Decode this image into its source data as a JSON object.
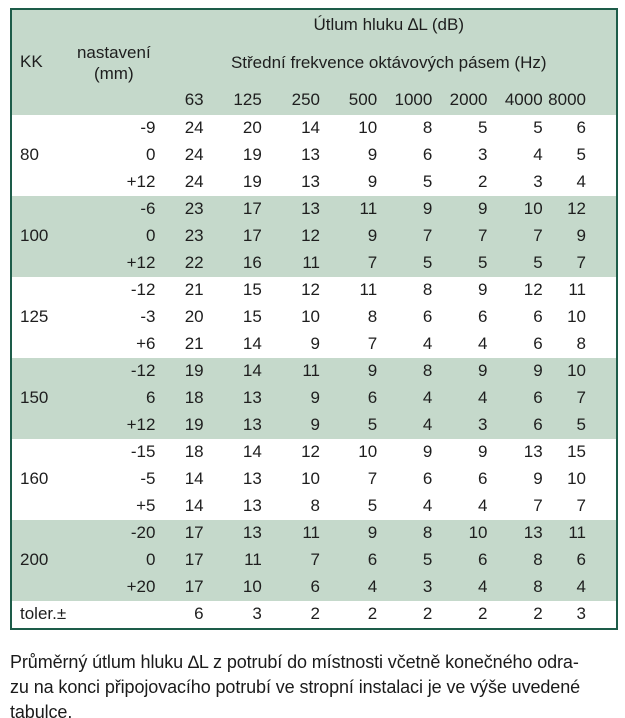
{
  "table": {
    "title": "Útlum hluku ∆L (dB)",
    "col1_header": "KK",
    "col2_header_line1": "nastavení",
    "col2_header_line2": "(mm)",
    "subtitle": "Střední frekvence oktávových pásem (Hz)",
    "frequencies": [
      "63",
      "125",
      "250",
      "500",
      "1000",
      "2000",
      "4000",
      "8000"
    ],
    "groups": [
      {
        "kk": "80",
        "shaded": false,
        "rows": [
          {
            "setting": "-9",
            "values": [
              24,
              20,
              14,
              10,
              8,
              5,
              5,
              6
            ]
          },
          {
            "setting": "0",
            "values": [
              24,
              19,
              13,
              9,
              6,
              3,
              4,
              5
            ]
          },
          {
            "setting": "+12",
            "values": [
              24,
              19,
              13,
              9,
              5,
              2,
              3,
              4
            ]
          }
        ]
      },
      {
        "kk": "100",
        "shaded": true,
        "rows": [
          {
            "setting": "-6",
            "values": [
              23,
              17,
              13,
              11,
              9,
              9,
              10,
              12
            ]
          },
          {
            "setting": "0",
            "values": [
              23,
              17,
              12,
              9,
              7,
              7,
              7,
              9
            ]
          },
          {
            "setting": "+12",
            "values": [
              22,
              16,
              11,
              7,
              5,
              5,
              5,
              7
            ]
          }
        ]
      },
      {
        "kk": "125",
        "shaded": false,
        "rows": [
          {
            "setting": "-12",
            "values": [
              21,
              15,
              12,
              11,
              8,
              9,
              12,
              11
            ]
          },
          {
            "setting": "-3",
            "values": [
              20,
              15,
              10,
              8,
              6,
              6,
              6,
              10
            ]
          },
          {
            "setting": "+6",
            "values": [
              21,
              14,
              9,
              7,
              4,
              4,
              6,
              8
            ]
          }
        ]
      },
      {
        "kk": "150",
        "shaded": true,
        "rows": [
          {
            "setting": "-12",
            "values": [
              19,
              14,
              11,
              9,
              8,
              9,
              9,
              10
            ]
          },
          {
            "setting": "6",
            "values": [
              18,
              13,
              9,
              6,
              4,
              4,
              6,
              7
            ]
          },
          {
            "setting": "+12",
            "values": [
              19,
              13,
              9,
              5,
              4,
              3,
              6,
              5
            ]
          }
        ]
      },
      {
        "kk": "160",
        "shaded": false,
        "rows": [
          {
            "setting": "-15",
            "values": [
              18,
              14,
              12,
              10,
              9,
              9,
              13,
              15
            ]
          },
          {
            "setting": "-5",
            "values": [
              14,
              13,
              10,
              7,
              6,
              6,
              9,
              10
            ]
          },
          {
            "setting": "+5",
            "values": [
              14,
              13,
              8,
              5,
              4,
              4,
              7,
              7
            ]
          }
        ]
      },
      {
        "kk": "200",
        "shaded": true,
        "rows": [
          {
            "setting": "-20",
            "values": [
              17,
              13,
              11,
              9,
              8,
              10,
              13,
              11
            ]
          },
          {
            "setting": "0",
            "values": [
              17,
              11,
              7,
              6,
              5,
              6,
              8,
              6
            ]
          },
          {
            "setting": "+20",
            "values": [
              17,
              10,
              6,
              4,
              3,
              4,
              8,
              4
            ]
          }
        ]
      }
    ],
    "tolerance_row": {
      "label": "toler.±",
      "values": [
        6,
        3,
        2,
        2,
        2,
        2,
        2,
        3
      ]
    }
  },
  "caption": {
    "line1": "Průměrný útlum hluku ∆L z potrubí do místnosti včetně konečného odra-",
    "line2": "zu na konci připojovacího potrubí ve stropní instalaci je ve výše uvedené",
    "line3": "tabulce."
  },
  "colors": {
    "band_green": "#c5d9cb",
    "border_green": "#1d5c49"
  }
}
